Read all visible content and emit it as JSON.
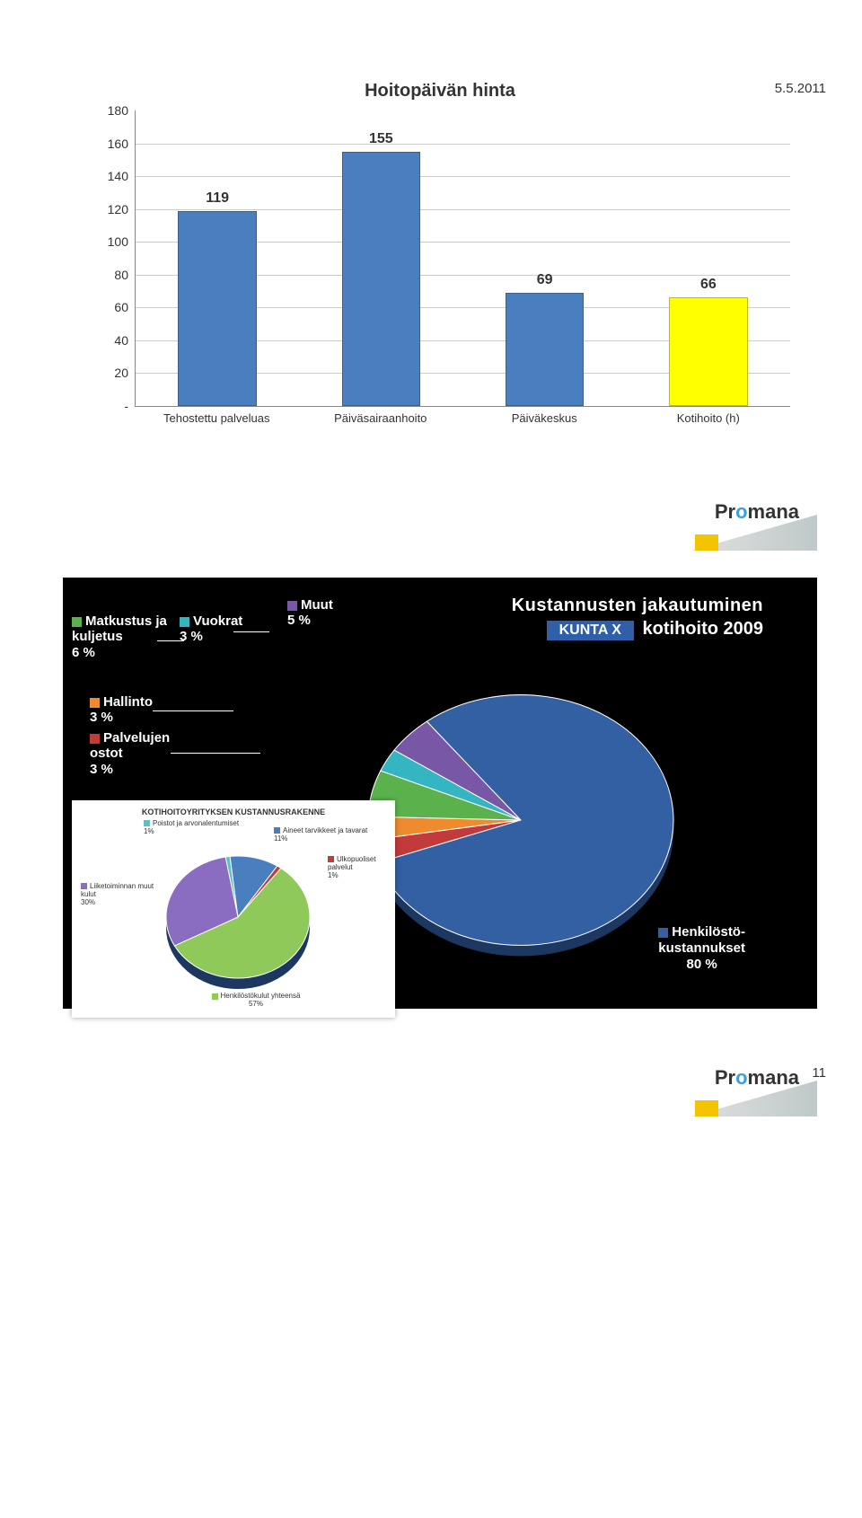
{
  "meta": {
    "date": "5.5.2011",
    "page_number": "11"
  },
  "bar_chart": {
    "type": "bar",
    "title": "Hoitopäivän hinta",
    "categories": [
      "Tehostettu palveluas",
      "Päiväsairaanhoito",
      "Päiväkeskus",
      "Kotihoito (h)"
    ],
    "values": [
      119,
      155,
      69,
      66
    ],
    "bar_colors": [
      "#4a7fbf",
      "#4a7fbf",
      "#4a7fbf",
      "#ffff00"
    ],
    "ylim": [
      0,
      180
    ],
    "ytick_step": 20,
    "yticks": [
      "-",
      "20",
      "40",
      "60",
      "80",
      "100",
      "120",
      "140",
      "160",
      "180"
    ],
    "bar_width": 0.45,
    "grid_color": "#cccccc",
    "axis_color": "#888888",
    "background_color": "#ffffff",
    "label_fontsize": 14,
    "value_fontsize": 16,
    "title_fontsize": 20
  },
  "brand": {
    "name_part1": "Pr",
    "name_o": "o",
    "name_part2": "mana"
  },
  "pie_main": {
    "type": "pie",
    "background_color": "#000000",
    "title_line1": "Kustannusten jakautuminen",
    "kunta_box": "KUNTA X",
    "title_line2_rest": "kotihoito 2009",
    "slices": [
      {
        "label": "Henkilöstö-\nkustannukset",
        "pct": 80,
        "color": "#335fa3"
      },
      {
        "label": "Matkustus ja kuljetus",
        "pct": 6,
        "color": "#5bb24d"
      },
      {
        "label": "Muut",
        "pct": 5,
        "color": "#7857a6"
      },
      {
        "label": "Vuokrat",
        "pct": 3,
        "color": "#33b5c2"
      },
      {
        "label": "Hallinto",
        "pct": 3,
        "color": "#ed8b2e"
      },
      {
        "label": "Palvelujen ostot",
        "pct": 3,
        "color": "#c23a3a"
      }
    ],
    "legend_labels": {
      "muut": "Muut\n5 %",
      "vuokrat": "Vuokrat\n3 %",
      "matkustus": "Matkustus ja\nkuljetus\n6 %",
      "hallinto": "Hallinto\n3 %",
      "ostot": "Palvelujen\nostot\n3 %",
      "hk": "Henkilöstö-\nkustannukset\n80 %"
    },
    "text_color": "#ffffff",
    "label_fontsize": 15,
    "title_fontsize": 20
  },
  "pie_small": {
    "type": "pie",
    "title": "KOTIHOITOYRITYKSEN KUSTANNUSRAKENNE",
    "slices": [
      {
        "label": "Henkilöstökulut yhteensä",
        "pct": 57,
        "color": "#8fc95a"
      },
      {
        "label": "Liiketoiminnan muut kulut",
        "pct": 30,
        "color": "#8a6cc1"
      },
      {
        "label": "Aineet tarvikkeet ja tavarat",
        "pct": 11,
        "color": "#4a7fbf"
      },
      {
        "label": "Poistot ja arvonalentumiset",
        "pct": 1,
        "color": "#5ac2c7"
      },
      {
        "label": "Ulkopuoliset palvelut",
        "pct": 1,
        "color": "#c23a3a"
      }
    ],
    "labels": {
      "poistot": "Poistot ja arvonalentumiset\n1%",
      "aineet": "Aineet tarvikkeet ja tavarat\n11%",
      "ulko": "Ulkopuoliset palvelut\n1%",
      "liike": "Liiketoiminnan muut kulut\n30%",
      "hk": "Henkilöstökulut yhteensä\n57%"
    },
    "background_color": "#ffffff",
    "title_fontsize": 9,
    "label_fontsize": 8
  }
}
